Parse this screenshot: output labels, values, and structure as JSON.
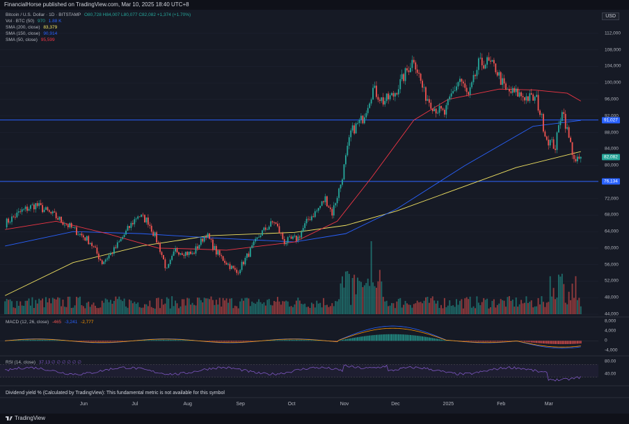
{
  "header": {
    "published": "FinancialHorse published on TradingView.com, Mar 10, 2025 18:40 UTC+8"
  },
  "currency": "USD",
  "legend": {
    "symbol": "Bitcoin / U.S. Dollar · 1D · BITSTAMP",
    "ohlc": "O80,728 H84,007 L80,077 C82,082 +1,374 (+1.70%)",
    "vol": {
      "label": "Vol · BTC (50)",
      "v1": "970",
      "v2": "1.88 K"
    },
    "sma200": {
      "label": "SMA (200, close)",
      "value": "83,379"
    },
    "sma150": {
      "label": "SMA (150, close)",
      "value": "90,914"
    },
    "sma50": {
      "label": "SMA (50, close)",
      "value": "95,599"
    }
  },
  "macd": {
    "label": "MACD (12, 26, close)",
    "v1": "-465",
    "v2": "-3,241",
    "v3": "-2,777"
  },
  "rsi": {
    "label": "RSI (14, close)",
    "value": "37.13 ∅ ∅ ∅ ∅ ∅ ∅"
  },
  "dividend_text": "Dividend yield % (Calculated by TradingView): This fundamental metric is not available for this symbol",
  "footer": {
    "brand": "TradingView"
  },
  "price_labels": {
    "upper": "91,027",
    "last": "82,082",
    "lower": "76,134"
  },
  "colors": {
    "bg": "#161a25",
    "up": "#26a69a",
    "down": "#ef5350",
    "hline": "#2962ff",
    "sma200": "#f5e663",
    "sma150": "#2962ff",
    "sma50": "#f23645",
    "rsi": "#7e57c2"
  },
  "chart_data": {
    "type": "candlestick",
    "x_months": [
      "Jun",
      "Jul",
      "Aug",
      "Sep",
      "Oct",
      "Nov",
      "Dec",
      "2025",
      "Feb",
      "Mar"
    ],
    "y_ticks": [
      "112,000",
      "108,000",
      "104,000",
      "100,000",
      "96,000",
      "92,000",
      "88,000",
      "84,000",
      "80,000",
      "76,000",
      "72,000",
      "68,000",
      "64,000",
      "60,000",
      "56,000",
      "52,000",
      "48,000",
      "44,000"
    ],
    "ylim": [
      44000,
      113000
    ],
    "horizontal_lines": [
      91027,
      76134
    ],
    "last_close": 82082,
    "price_anchors": [
      {
        "d": 0,
        "c": 66000
      },
      {
        "d": 10,
        "c": 69000
      },
      {
        "d": 18,
        "c": 70500
      },
      {
        "d": 30,
        "c": 67500
      },
      {
        "d": 42,
        "c": 64000
      },
      {
        "d": 50,
        "c": 61500
      },
      {
        "d": 57,
        "c": 56500
      },
      {
        "d": 64,
        "c": 59500
      },
      {
        "d": 72,
        "c": 64500
      },
      {
        "d": 78,
        "c": 68000
      },
      {
        "d": 84,
        "c": 66500
      },
      {
        "d": 90,
        "c": 61000
      },
      {
        "d": 95,
        "c": 54500
      },
      {
        "d": 100,
        "c": 59500
      },
      {
        "d": 110,
        "c": 58500
      },
      {
        "d": 118,
        "c": 63500
      },
      {
        "d": 124,
        "c": 59000
      },
      {
        "d": 130,
        "c": 56500
      },
      {
        "d": 136,
        "c": 54000
      },
      {
        "d": 142,
        "c": 58000
      },
      {
        "d": 150,
        "c": 63500
      },
      {
        "d": 158,
        "c": 66500
      },
      {
        "d": 164,
        "c": 61500
      },
      {
        "d": 172,
        "c": 62500
      },
      {
        "d": 178,
        "c": 67000
      },
      {
        "d": 183,
        "c": 69000
      },
      {
        "d": 188,
        "c": 72000
      },
      {
        "d": 192,
        "c": 68500
      },
      {
        "d": 197,
        "c": 75500
      },
      {
        "d": 203,
        "c": 88000
      },
      {
        "d": 210,
        "c": 91500
      },
      {
        "d": 216,
        "c": 98500
      },
      {
        "d": 222,
        "c": 95500
      },
      {
        "d": 228,
        "c": 97000
      },
      {
        "d": 234,
        "c": 101500
      },
      {
        "d": 240,
        "c": 106000
      },
      {
        "d": 246,
        "c": 97500
      },
      {
        "d": 252,
        "c": 94000
      },
      {
        "d": 258,
        "c": 92500
      },
      {
        "d": 262,
        "c": 97000
      },
      {
        "d": 267,
        "c": 101000
      },
      {
        "d": 272,
        "c": 96500
      },
      {
        "d": 278,
        "c": 104500
      },
      {
        "d": 283,
        "c": 105000
      },
      {
        "d": 288,
        "c": 103500
      },
      {
        "d": 294,
        "c": 98000
      },
      {
        "d": 300,
        "c": 97500
      },
      {
        "d": 306,
        "c": 96500
      },
      {
        "d": 312,
        "c": 96000
      },
      {
        "d": 318,
        "c": 86500
      },
      {
        "d": 323,
        "c": 84500
      },
      {
        "d": 327,
        "c": 94000
      },
      {
        "d": 331,
        "c": 86500
      },
      {
        "d": 335,
        "c": 80500
      },
      {
        "d": 338,
        "c": 82082
      }
    ],
    "sma200_anchors": [
      [
        0,
        48500
      ],
      [
        40,
        56500
      ],
      [
        80,
        60500
      ],
      [
        120,
        63000
      ],
      [
        170,
        63800
      ],
      [
        200,
        65500
      ],
      [
        230,
        69000
      ],
      [
        270,
        75000
      ],
      [
        300,
        79500
      ],
      [
        338,
        83379
      ]
    ],
    "sma150_anchors": [
      [
        0,
        60500
      ],
      [
        40,
        64000
      ],
      [
        80,
        63500
      ],
      [
        120,
        62500
      ],
      [
        170,
        61500
      ],
      [
        200,
        63500
      ],
      [
        230,
        69500
      ],
      [
        270,
        80000
      ],
      [
        310,
        89500
      ],
      [
        338,
        90914
      ]
    ],
    "sma50_anchors": [
      [
        0,
        64500
      ],
      [
        30,
        66500
      ],
      [
        60,
        63500
      ],
      [
        90,
        60000
      ],
      [
        110,
        59800
      ],
      [
        130,
        59500
      ],
      [
        150,
        60500
      ],
      [
        170,
        61500
      ],
      [
        195,
        66500
      ],
      [
        215,
        77000
      ],
      [
        240,
        91000
      ],
      [
        260,
        96000
      ],
      [
        290,
        98500
      ],
      [
        310,
        98300
      ],
      [
        330,
        97500
      ],
      [
        338,
        95599
      ]
    ],
    "macd_ylim": [
      -5,
      8
    ],
    "macd_ticks": [
      "8,000",
      "4,000",
      "0",
      "-4,000"
    ],
    "rsi_ylim": [
      0,
      100
    ],
    "rsi_ticks": [
      "80.00",
      "40.00"
    ]
  }
}
